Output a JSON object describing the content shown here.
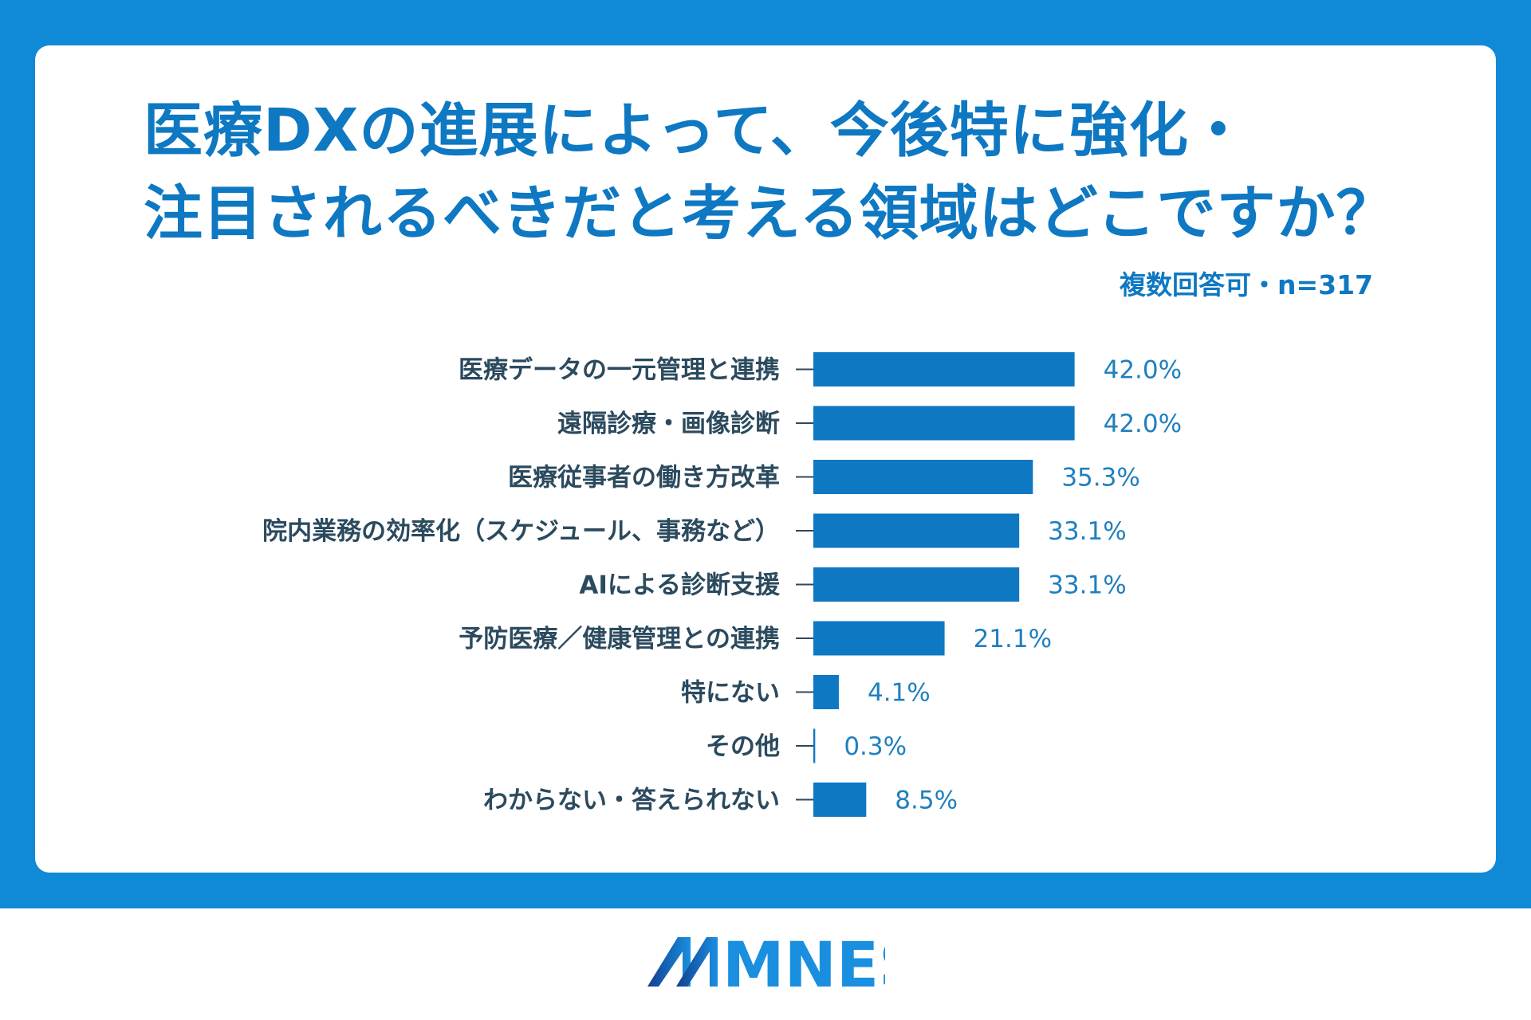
{
  "title_lines": [
    "医療DXの進展によって、今後特に強化・",
    "注目されるべきだと考える領域はどこですか？"
  ],
  "note": "複数回答可・n=317",
  "colors": {
    "frame": "#1089d6",
    "bar": "#0e78c2",
    "value_text": "#1f7fbf",
    "label_text": "#2b4a5e"
  },
  "logo": {
    "text": "MNES",
    "icon": "mnes-logo"
  },
  "chart_data": {
    "type": "bar",
    "orientation": "horizontal",
    "categories": [
      "医療データの一元管理と連携",
      "遠隔診療・画像診断",
      "医療従事者の働き方改革",
      "院内業務の効率化（スケジュール、事務など）",
      "AIによる診断支援",
      "予防医療／健康管理との連携",
      "特にない",
      "その他",
      "わからない・答えられない"
    ],
    "values": [
      42.0,
      42.0,
      35.3,
      33.1,
      33.1,
      21.1,
      4.1,
      0.3,
      8.5
    ],
    "value_labels": [
      "42.0%",
      "42.0%",
      "35.3%",
      "33.1%",
      "33.1%",
      "21.1%",
      "4.1%",
      "0.3%",
      "8.5%"
    ],
    "unit": "%",
    "grid": false,
    "legend": "none"
  }
}
